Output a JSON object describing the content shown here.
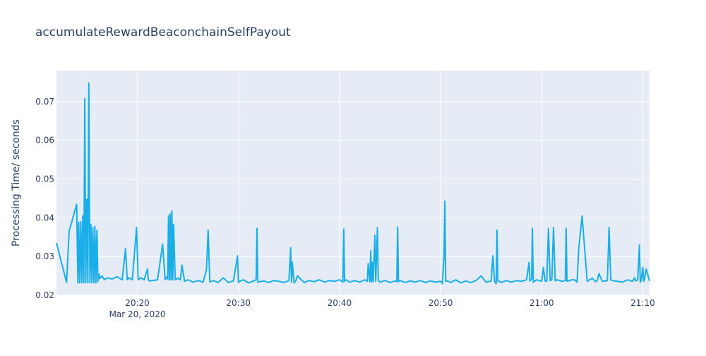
{
  "chart_data": {
    "type": "line",
    "title": "accumulateRewardBeaconchainSelfPayout",
    "xlabel": "",
    "ylabel": "Processing Time/ seconds",
    "x_range": [
      "2020-03-20 20:12",
      "2020-03-20 21:10:40"
    ],
    "x_ticks": [
      {
        "time": "20:20",
        "label": "20:20",
        "sublabel": "Mar 20, 2020"
      },
      {
        "time": "20:30",
        "label": "20:30"
      },
      {
        "time": "20:40",
        "label": "20:40"
      },
      {
        "time": "20:50",
        "label": "20:50"
      },
      {
        "time": "21:00",
        "label": "21:00"
      },
      {
        "time": "21:10",
        "label": "21:10"
      }
    ],
    "ylim": [
      0.02,
      0.078
    ],
    "y_ticks": [
      0.02,
      0.03,
      0.04,
      0.05,
      0.06,
      0.07
    ],
    "y_tick_labels": [
      "0.02",
      "0.03",
      "0.04",
      "0.05",
      "0.06",
      "0.07"
    ],
    "grid": true,
    "colors": {
      "line": "#19aee8",
      "plot_bg": "#e5ecf6",
      "grid": "#ffffff",
      "text": "#2a3f5f"
    },
    "series": [
      {
        "name": "",
        "x": [
          "20:12:00",
          "20:13:00",
          "20:13:15",
          "20:14:00",
          "20:14:07",
          "20:14:12",
          "20:14:18",
          "20:14:24",
          "20:14:30",
          "20:14:36",
          "20:14:42",
          "20:14:48",
          "20:14:54",
          "20:15:00",
          "20:15:06",
          "20:15:12",
          "20:15:18",
          "20:15:24",
          "20:15:30",
          "20:15:36",
          "20:15:42",
          "20:15:48",
          "20:15:54",
          "20:16:00",
          "20:16:06",
          "20:16:12",
          "20:16:18",
          "20:16:30",
          "20:16:45",
          "20:17:00",
          "20:17:30",
          "20:18:00",
          "20:18:30",
          "20:18:50",
          "20:19:00",
          "20:19:10",
          "20:19:30",
          "20:19:55",
          "20:20:05",
          "20:20:20",
          "20:20:40",
          "20:21:00",
          "20:21:05",
          "20:21:10",
          "20:22:00",
          "20:22:30",
          "20:22:45",
          "20:22:55",
          "20:23:00",
          "20:23:05",
          "20:23:10",
          "20:23:15",
          "20:23:20",
          "20:23:25",
          "20:23:30",
          "20:23:35",
          "20:23:45",
          "20:24:00",
          "20:24:15",
          "20:24:25",
          "20:24:40",
          "20:25:00",
          "20:25:30",
          "20:26:00",
          "20:26:30",
          "20:26:50",
          "20:27:00",
          "20:27:10",
          "20:27:30",
          "20:28:00",
          "20:28:30",
          "20:29:00",
          "20:29:30",
          "20:29:55",
          "20:30:00",
          "20:30:05",
          "20:30:30",
          "20:31:00",
          "20:31:30",
          "20:31:45",
          "20:31:50",
          "20:31:55",
          "20:32:30",
          "20:33:00",
          "20:33:30",
          "20:34:00",
          "20:34:30",
          "20:35:00",
          "20:35:10",
          "20:35:15",
          "20:35:20",
          "20:35:30",
          "20:35:40",
          "20:35:50",
          "20:36:30",
          "20:37:00",
          "20:37:30",
          "20:38:00",
          "20:38:30",
          "20:39:00",
          "20:39:30",
          "20:40:00",
          "20:40:20",
          "20:40:25",
          "20:40:30",
          "20:40:40",
          "20:41:00",
          "20:41:30",
          "20:42:00",
          "20:42:30",
          "20:42:45",
          "20:42:50",
          "20:43:00",
          "20:43:05",
          "20:43:10",
          "20:43:15",
          "20:43:20",
          "20:43:30",
          "20:43:35",
          "20:43:45",
          "20:43:50",
          "20:43:55",
          "20:44:00",
          "20:44:30",
          "20:45:00",
          "20:45:30",
          "20:45:40",
          "20:45:45",
          "20:45:50",
          "20:46:00",
          "20:46:30",
          "20:47:00",
          "20:47:30",
          "20:48:00",
          "20:48:30",
          "20:49:00",
          "20:49:30",
          "20:50:00",
          "20:50:10",
          "20:50:20",
          "20:50:25",
          "20:50:30",
          "20:50:40",
          "20:51:00",
          "20:51:30",
          "20:52:00",
          "20:52:30",
          "20:53:00",
          "20:53:30",
          "20:54:00",
          "20:54:30",
          "20:55:00",
          "20:55:10",
          "20:55:20",
          "20:55:30",
          "20:55:35",
          "20:55:40",
          "20:56:00",
          "20:56:30",
          "20:57:00",
          "20:57:30",
          "20:58:00",
          "20:58:30",
          "20:58:45",
          "20:58:50",
          "20:59:00",
          "20:59:05",
          "20:59:10",
          "20:59:30",
          "21:00:00",
          "21:00:10",
          "21:00:20",
          "21:00:30",
          "21:00:40",
          "21:00:50",
          "21:01:00",
          "21:01:10",
          "21:01:20",
          "21:01:30",
          "21:02:00",
          "21:02:20",
          "21:02:25",
          "21:02:30",
          "21:03:00",
          "21:03:15",
          "21:03:30",
          "21:03:40",
          "21:04:00",
          "21:04:30",
          "21:05:00",
          "21:05:20",
          "21:05:30",
          "21:05:40",
          "21:06:00",
          "21:06:30",
          "21:06:40",
          "21:06:50",
          "21:07:00",
          "21:07:30",
          "21:08:00",
          "21:08:30",
          "21:09:00",
          "21:09:10",
          "21:09:20",
          "21:09:30",
          "21:09:40",
          "21:09:45",
          "21:09:50",
          "21:10:00",
          "21:10:05",
          "21:10:10",
          "21:10:20",
          "21:10:40"
        ],
        "y": [
          0.0335,
          0.0233,
          0.0365,
          0.0435,
          0.0232,
          0.0388,
          0.0232,
          0.039,
          0.0233,
          0.0405,
          0.0232,
          0.0708,
          0.0233,
          0.0448,
          0.0232,
          0.0748,
          0.0233,
          0.0383,
          0.0232,
          0.0375,
          0.0233,
          0.0378,
          0.0232,
          0.0368,
          0.0235,
          0.0255,
          0.0243,
          0.025,
          0.024,
          0.0245,
          0.0242,
          0.0248,
          0.024,
          0.032,
          0.024,
          0.0245,
          0.024,
          0.0375,
          0.024,
          0.0245,
          0.024,
          0.0268,
          0.024,
          0.0237,
          0.024,
          0.0332,
          0.024,
          0.0248,
          0.0242,
          0.0405,
          0.024,
          0.041,
          0.024,
          0.0418,
          0.024,
          0.0383,
          0.024,
          0.0244,
          0.024,
          0.0278,
          0.0236,
          0.024,
          0.0234,
          0.0238,
          0.0234,
          0.0265,
          0.0368,
          0.0234,
          0.0238,
          0.0233,
          0.0245,
          0.0233,
          0.0237,
          0.0302,
          0.0233,
          0.0236,
          0.024,
          0.0232,
          0.0237,
          0.024,
          0.0373,
          0.0234,
          0.0237,
          0.0233,
          0.0238,
          0.0236,
          0.0233,
          0.0238,
          0.0323,
          0.0234,
          0.0285,
          0.0232,
          0.0237,
          0.025,
          0.0233,
          0.0238,
          0.0235,
          0.024,
          0.0234,
          0.0238,
          0.0236,
          0.024,
          0.0234,
          0.0371,
          0.0236,
          0.024,
          0.0234,
          0.0238,
          0.0234,
          0.024,
          0.0236,
          0.0282,
          0.0234,
          0.0315,
          0.0236,
          0.0285,
          0.0234,
          0.0355,
          0.0236,
          0.0375,
          0.024,
          0.0236,
          0.0234,
          0.0238,
          0.0233,
          0.0237,
          0.0235,
          0.0376,
          0.0235,
          0.0238,
          0.0233,
          0.0237,
          0.0234,
          0.0238,
          0.0233,
          0.0237,
          0.0234,
          0.0236,
          0.023,
          0.03,
          0.0443,
          0.0236,
          0.0237,
          0.0233,
          0.024,
          0.0232,
          0.0237,
          0.0233,
          0.0238,
          0.025,
          0.0234,
          0.0237,
          0.0302,
          0.0236,
          0.023,
          0.0368,
          0.0238,
          0.0233,
          0.0238,
          0.0234,
          0.0238,
          0.0236,
          0.024,
          0.0285,
          0.0237,
          0.0242,
          0.0373,
          0.0234,
          0.024,
          0.0236,
          0.0272,
          0.0237,
          0.0236,
          0.0372,
          0.0238,
          0.024,
          0.0375,
          0.0237,
          0.024,
          0.0236,
          0.0238,
          0.0373,
          0.0236,
          0.024,
          0.024,
          0.0234,
          0.0322,
          0.0405,
          0.0236,
          0.0244,
          0.0235,
          0.0238,
          0.0256,
          0.0236,
          0.0238,
          0.0375,
          0.024,
          0.0238,
          0.0236,
          0.0234,
          0.024,
          0.0236,
          0.0245,
          0.0237,
          0.024,
          0.033,
          0.0234,
          0.0238,
          0.0272,
          0.0236,
          0.024,
          0.0268,
          0.0237
        ]
      }
    ]
  }
}
